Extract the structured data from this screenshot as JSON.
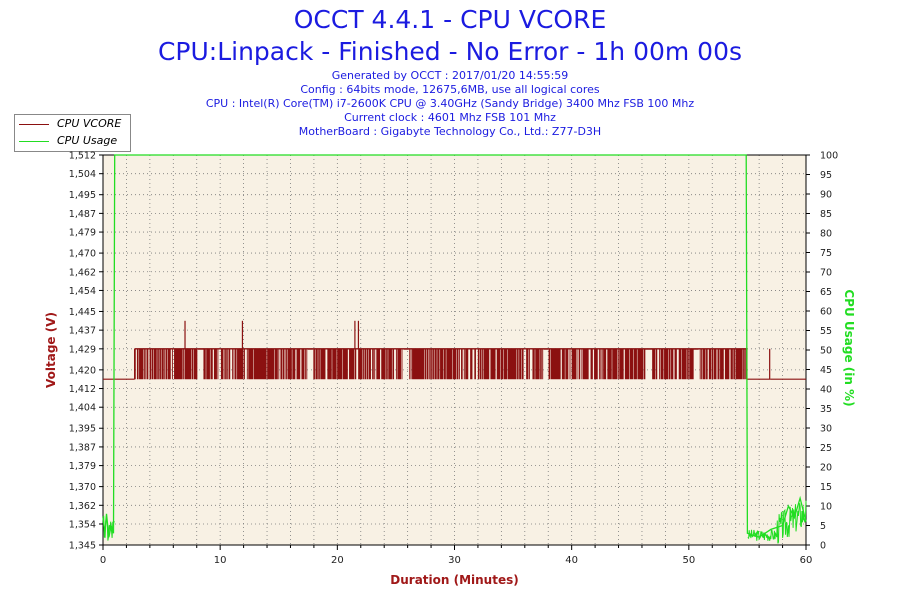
{
  "header": {
    "title": "OCCT 4.4.1 - CPU VCORE",
    "subtitle": "CPU:Linpack - Finished - No Error - 1h 00m 00s",
    "info_lines": [
      "Generated by OCCT : 2017/01/20 14:55:59",
      "Config : 64bits mode, 12675,6MB, use all logical cores",
      "CPU : Intel(R) Core(TM) i7-2600K CPU @ 3.40GHz (Sandy Bridge) 3400 Mhz FSB 100 Mhz",
      "Current clock : 4601 Mhz FSB 101 Mhz",
      "MotherBoard : Gigabyte Technology Co., Ltd.: Z77-D3H"
    ]
  },
  "colors": {
    "vcore": "#8b1010",
    "usage": "#22dd22",
    "plot_bg": "#f8f1e4",
    "grid": "#7a7a7a",
    "title": "#1b1be0",
    "axis_label_left": "#a01818",
    "axis_label_right": "#22dd22",
    "axis_label_x": "#a01818"
  },
  "legend": [
    {
      "label": "CPU VCORE",
      "color": "#8b1010"
    },
    {
      "label": "CPU Usage",
      "color": "#22dd22"
    }
  ],
  "chart_data": {
    "type": "line",
    "xlabel": "Duration (Minutes)",
    "ylabel": "Voltage (V)",
    "y2label": "CPU Usage (in %)",
    "xlim": [
      0,
      60
    ],
    "ylim": [
      1.345,
      1.512
    ],
    "y2lim": [
      0,
      100
    ],
    "x_ticks": [
      0,
      10,
      20,
      30,
      40,
      50,
      60
    ],
    "y_tick_labels": [
      "1,345",
      "1,354",
      "1,362",
      "1,370",
      "1,379",
      "1,387",
      "1,395",
      "1,404",
      "1,412",
      "1,420",
      "1,429",
      "1,437",
      "1,445",
      "1,454",
      "1,462",
      "1,470",
      "1,479",
      "1,487",
      "1,495",
      "1,504",
      "1,512"
    ],
    "y_tick_values": [
      1.345,
      1.354,
      1.362,
      1.37,
      1.379,
      1.387,
      1.395,
      1.404,
      1.412,
      1.42,
      1.429,
      1.437,
      1.445,
      1.454,
      1.462,
      1.47,
      1.479,
      1.487,
      1.495,
      1.504,
      1.512
    ],
    "y2_ticks": [
      0,
      5,
      10,
      15,
      20,
      25,
      30,
      35,
      40,
      45,
      50,
      55,
      60,
      65,
      70,
      75,
      80,
      85,
      90,
      95,
      100
    ],
    "grid": true,
    "legend_position": "top-left",
    "series": [
      {
        "name": "CPU VCORE",
        "axis": "left",
        "idle_level": 1.416,
        "load_low": 1.416,
        "load_high": 1.429,
        "load_start": 2.7,
        "load_end": 57.0,
        "gaps": [
          [
            8.1,
            8.6
          ],
          [
            17.5,
            17.9
          ],
          [
            25.7,
            26.1
          ],
          [
            37.6,
            38.0
          ],
          [
            46.3,
            46.9
          ],
          [
            50.4,
            50.8
          ]
        ],
        "spikes": [
          [
            7.0,
            1.441
          ],
          [
            11.9,
            1.441
          ],
          [
            21.5,
            1.441
          ],
          [
            21.8,
            1.441
          ]
        ],
        "x": [
          0,
          2.6,
          2.7,
          55.0,
          56.9,
          57.0,
          60
        ],
        "y": [
          1.416,
          1.416,
          1.429,
          1.429,
          1.429,
          1.416,
          1.416
        ]
      },
      {
        "name": "CPU Usage",
        "axis": "right",
        "x": [
          0,
          0.15,
          0.3,
          0.5,
          0.7,
          0.9,
          1.0,
          54.9,
          55.0,
          56.0,
          57.0,
          58.0,
          58.5,
          59.0,
          59.5,
          60
        ],
        "y": [
          7,
          3,
          8,
          2,
          5,
          3,
          100,
          100,
          3,
          2,
          4,
          5,
          10,
          7,
          12,
          6
        ]
      }
    ]
  }
}
